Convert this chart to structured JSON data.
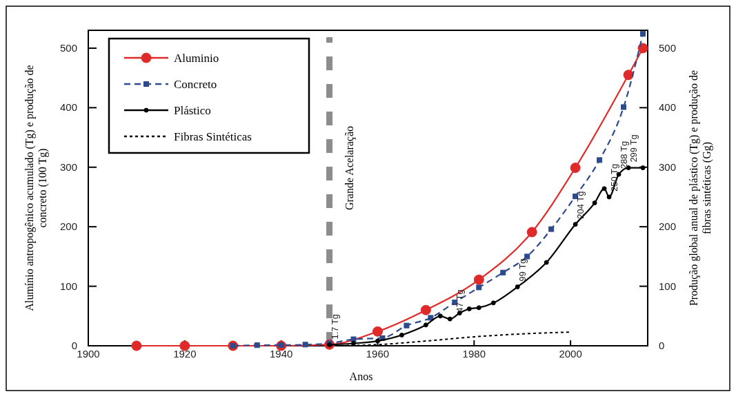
{
  "chart_data": {
    "type": "line",
    "xlabel": "Anos",
    "ylabel": "Alumínio antropogênico acumulado (Tg) e produção de concreto (100 Tg)",
    "y2label": "Produção global anual de plástico (Tg) e produção de fibras sintéticas (Gg)",
    "xlim": [
      1900,
      2016
    ],
    "xticks": [
      1900,
      1920,
      1940,
      1960,
      1980,
      2000
    ],
    "ylim": [
      0,
      530
    ],
    "yticks": [
      0,
      100,
      200,
      300,
      400,
      500
    ],
    "y2lim": [
      0,
      530
    ],
    "y2ticks": [
      0,
      100,
      200,
      300,
      400,
      500
    ],
    "legend": "top left",
    "grid": false,
    "series": [
      {
        "name": "Aluminio",
        "color": "#e02a2a",
        "marker": "circle",
        "line_style": "solid",
        "x": [
          1910,
          1920,
          1930,
          1940,
          1950,
          1960,
          1970,
          1981,
          1992,
          2001,
          2012,
          2015
        ],
        "values": [
          0,
          0,
          0,
          0,
          2,
          24,
          60,
          111,
          191,
          299,
          455,
          500
        ]
      },
      {
        "name": "Concreto",
        "color": "#2c4a8c",
        "marker": "square",
        "line_style": "dashed",
        "x": [
          1930,
          1935,
          1940,
          1945,
          1950,
          1955,
          1961,
          1966,
          1971,
          1976,
          1981,
          1986,
          1991,
          1996,
          2001,
          2006,
          2011,
          2015
        ],
        "values": [
          0,
          1,
          1,
          2,
          4,
          11,
          13,
          34,
          47,
          73,
          98,
          123,
          150,
          196,
          251,
          312,
          401,
          524
        ]
      },
      {
        "name": "Plástico",
        "color": "#000000",
        "marker": "circle",
        "line_style": "solid",
        "axis": "y2",
        "x": [
          1950,
          1955,
          1960,
          1965,
          1970,
          1973,
          1975,
          1977,
          1979,
          1981,
          1984,
          1989,
          1995,
          2001,
          2005,
          2007,
          2008,
          2010,
          2012,
          2015
        ],
        "values": [
          1.7,
          4,
          8,
          18,
          35,
          50,
          45,
          55,
          62,
          64,
          72,
          99,
          140,
          204,
          240,
          264,
          250,
          288,
          299,
          299
        ]
      },
      {
        "name": "Fibras Sintéticas",
        "color": "#000000",
        "marker": "none",
        "line_style": "dotted",
        "axis": "y2",
        "x": [
          1950,
          1960,
          1970,
          1980,
          1990,
          2000
        ],
        "values": [
          0,
          2,
          8,
          15,
          20,
          23
        ]
      }
    ],
    "ref_lines": [
      {
        "axis": "x",
        "value": 1950,
        "label": "Grande Acelaração",
        "color": "#8c8c8c",
        "line_style": "dashed"
      }
    ],
    "annotations": [
      {
        "text": "1.7 Tg",
        "x": 1950,
        "y": 1.7
      },
      {
        "text": "47 Tg",
        "x": 1976,
        "y": 47
      },
      {
        "text": "99 Tg",
        "x": 1989,
        "y": 99
      },
      {
        "text": "204 Tg",
        "x": 2001,
        "y": 204
      },
      {
        "text": "250 Tg",
        "x": 2008,
        "y": 250
      },
      {
        "text": "288 Tg",
        "x": 2010,
        "y": 288
      },
      {
        "text": "299 Tg",
        "x": 2012,
        "y": 299
      }
    ]
  }
}
